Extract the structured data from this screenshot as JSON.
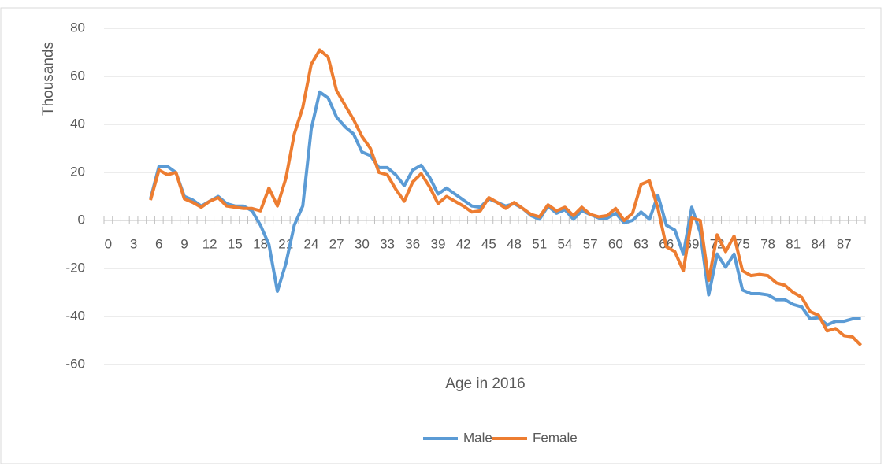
{
  "chart_data": {
    "type": "line",
    "y_label": "Thousands",
    "x_label": "Age in 2016",
    "categories": [
      0,
      null,
      null,
      3,
      null,
      null,
      6,
      null,
      null,
      9,
      null,
      null,
      12,
      null,
      null,
      15,
      null,
      null,
      18,
      null,
      null,
      21,
      null,
      null,
      24,
      null,
      null,
      27,
      null,
      null,
      30,
      null,
      null,
      33,
      null,
      null,
      36,
      null,
      null,
      39,
      null,
      null,
      42,
      null,
      null,
      45,
      null,
      null,
      48,
      null,
      null,
      51,
      null,
      null,
      54,
      null,
      null,
      57,
      null,
      null,
      60,
      null,
      null,
      63,
      null,
      null,
      66,
      null,
      null,
      69,
      null,
      null,
      72,
      null,
      null,
      75,
      null,
      null,
      78,
      null,
      null,
      81,
      null,
      null,
      84,
      null,
      null,
      87,
      null,
      null
    ],
    "series": [
      {
        "name": "Male",
        "color": "#5b9bd5",
        "values": [
          null,
          null,
          null,
          null,
          null,
          9,
          22.5,
          22.5,
          20,
          10,
          8.5,
          6,
          8,
          10,
          7,
          6,
          6,
          4,
          -2,
          -10,
          -29.5,
          -18,
          -2,
          6,
          38,
          53.5,
          51,
          43,
          39,
          36,
          28.5,
          27,
          22,
          22,
          19,
          14.5,
          21,
          23,
          18,
          11,
          13.5,
          11,
          8.5,
          6,
          5.5,
          9,
          7.5,
          6,
          7,
          5,
          2,
          0.5,
          6,
          3,
          4.5,
          0.5,
          4,
          2.5,
          1,
          1,
          3,
          -1,
          0,
          3.5,
          0.5,
          10.5,
          -2,
          -4,
          -14,
          5.5,
          -5,
          -31,
          -14,
          -19.5,
          -14,
          -29,
          -30.5,
          -30.5,
          -31,
          -33,
          -33,
          -35,
          -36,
          -41,
          -40.5,
          -43.5,
          -42,
          -42,
          -41,
          -41
        ]
      },
      {
        "name": "Female",
        "color": "#ed7d31",
        "values": [
          null,
          null,
          null,
          null,
          null,
          8.5,
          21,
          19,
          20,
          9,
          7.5,
          5.5,
          8,
          9.5,
          6,
          5.5,
          5,
          5,
          4,
          13.5,
          6,
          17.5,
          36,
          47,
          65,
          71,
          68,
          54,
          48,
          42,
          35,
          30,
          20,
          19,
          13,
          8,
          16,
          19.5,
          14,
          7,
          10,
          8,
          6,
          3.5,
          4,
          9.5,
          7.5,
          5,
          7.5,
          5,
          2.5,
          1.5,
          6.5,
          4,
          5.5,
          2,
          5.5,
          2.5,
          1.5,
          2,
          5,
          0,
          3,
          15,
          16.5,
          5,
          -11,
          -13,
          -21,
          1,
          0,
          -25,
          -6,
          -13,
          -6.5,
          -21,
          -23,
          -22.5,
          -23,
          -26,
          -27,
          -30,
          -32,
          -38,
          -39.5,
          -46,
          -45,
          -48,
          -48.5,
          -52
        ]
      }
    ],
    "ylim": [
      -60,
      80
    ],
    "yticks": [
      -60,
      -40,
      -20,
      0,
      20,
      40,
      60,
      80
    ],
    "grid": true,
    "legend": "bottom"
  }
}
